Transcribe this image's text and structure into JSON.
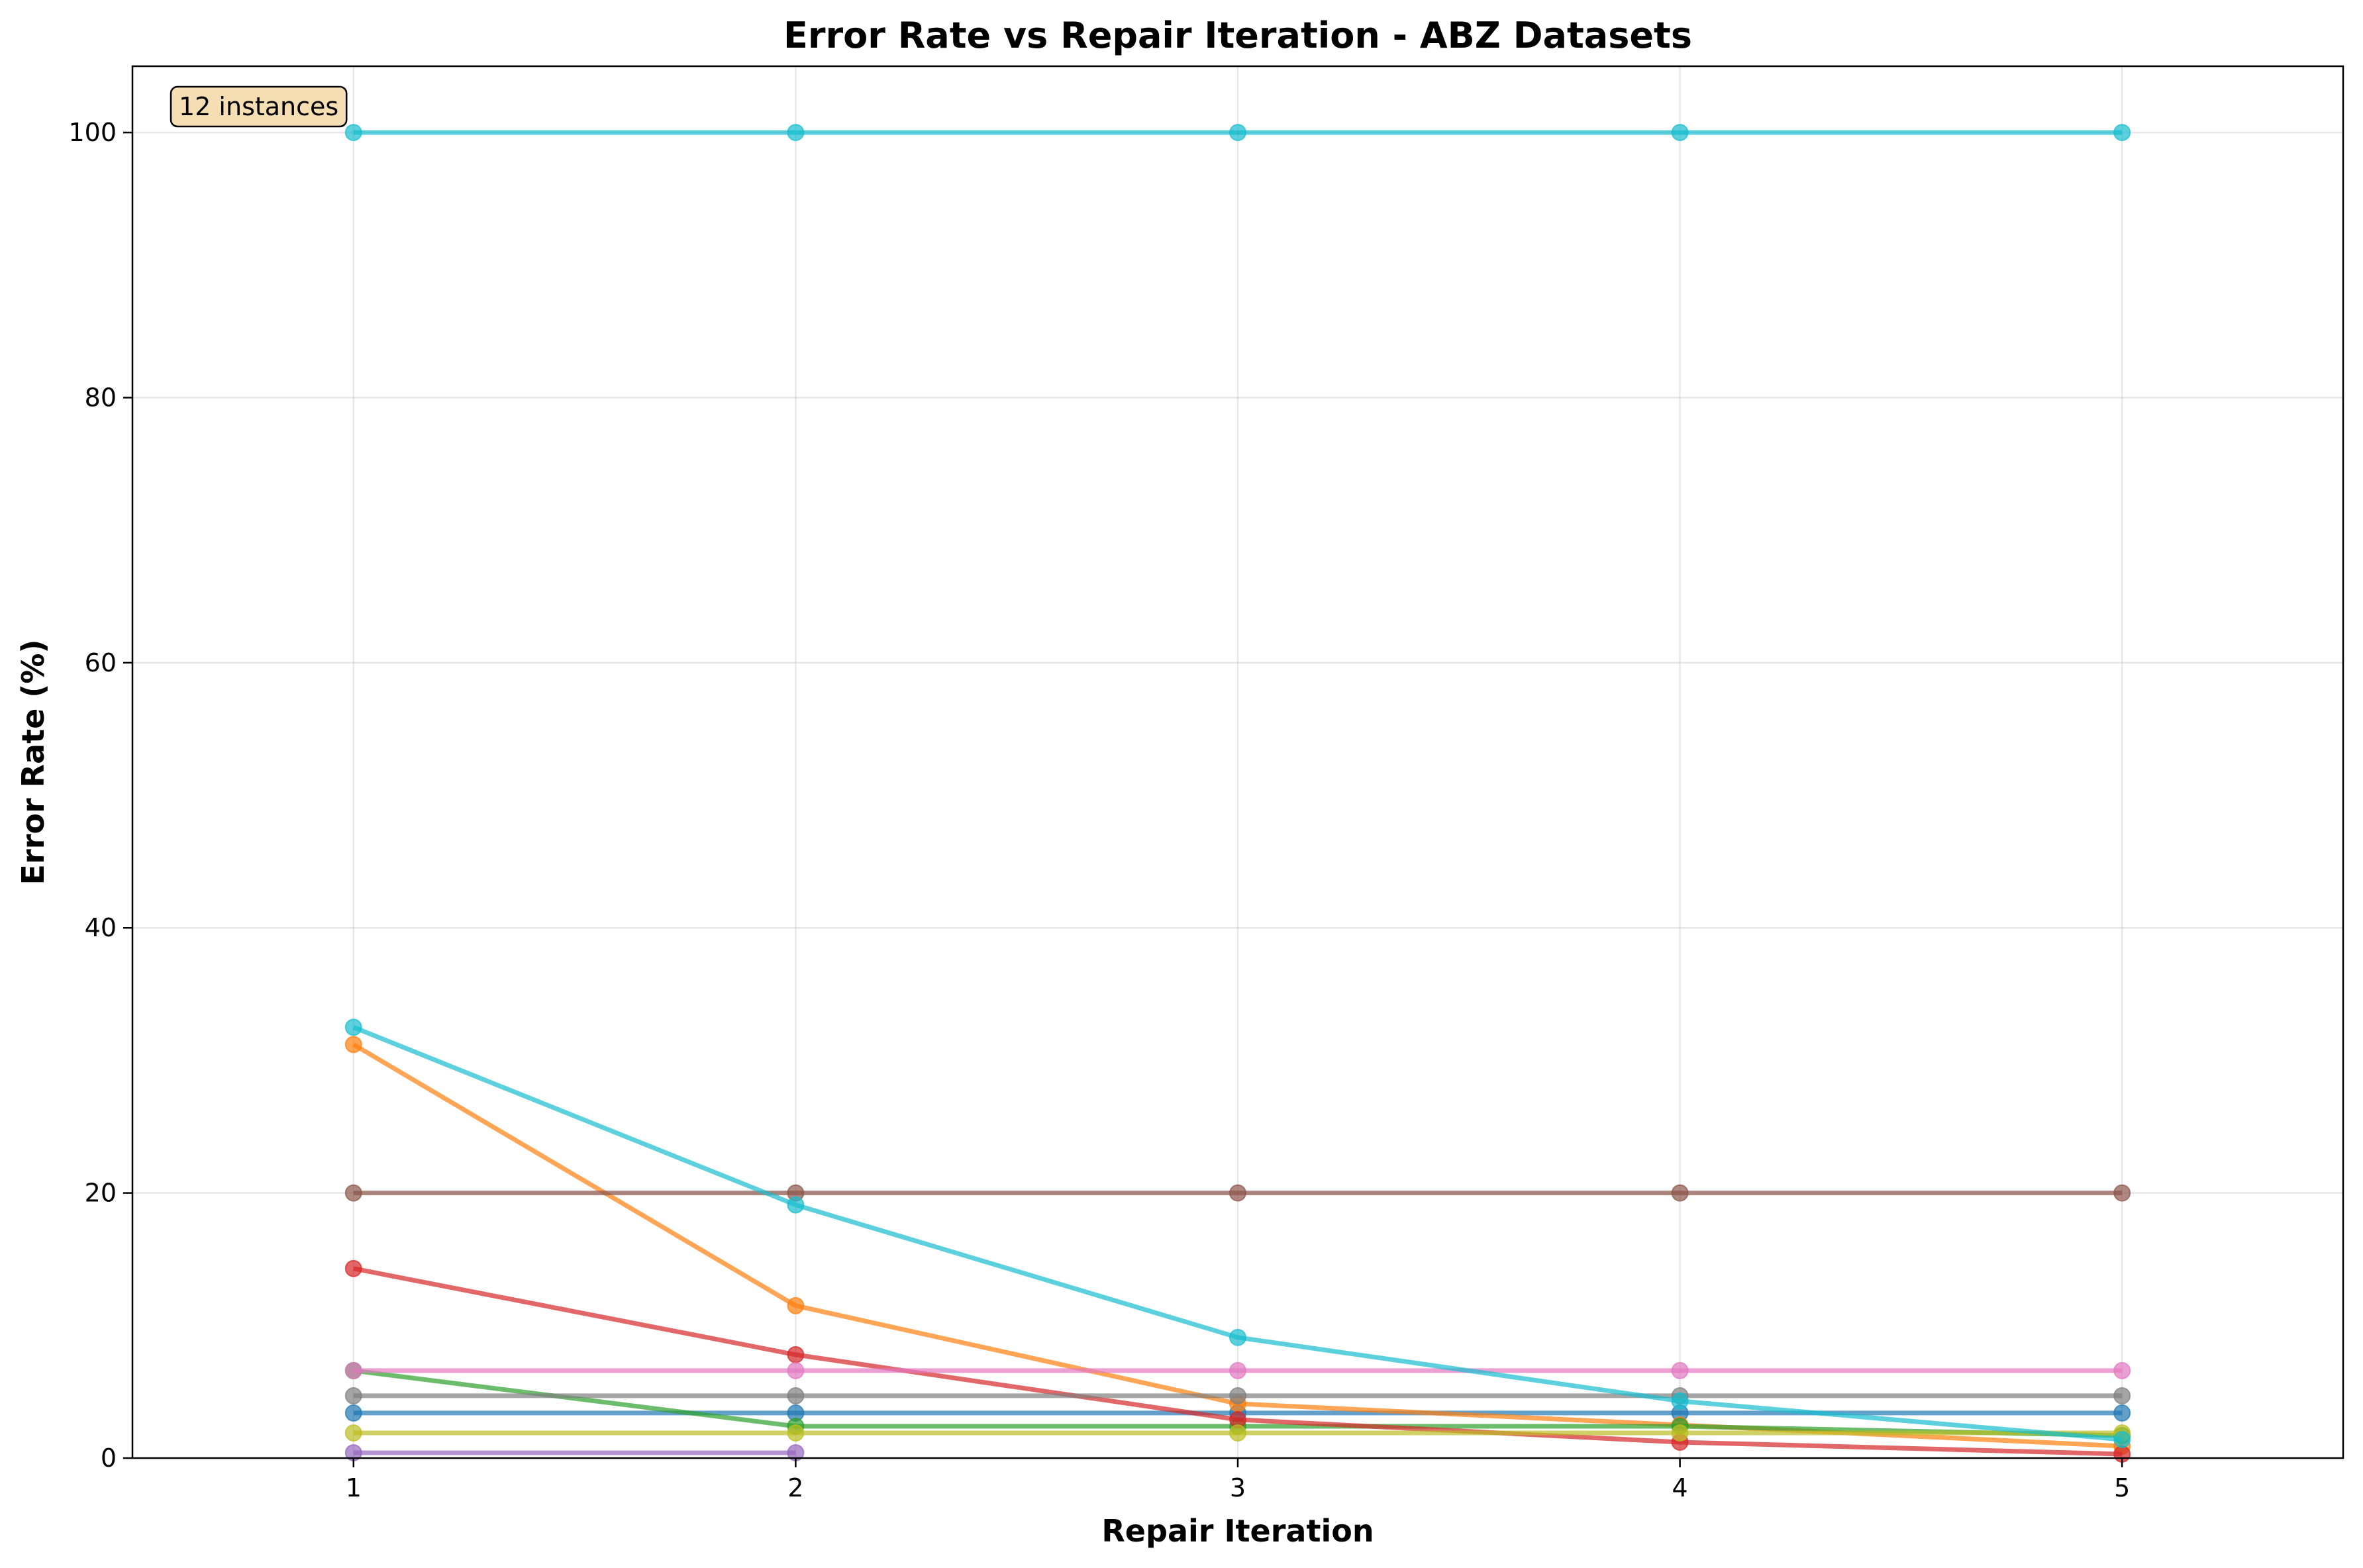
{
  "chart_data": {
    "type": "line",
    "title": "Error Rate vs Repair Iteration - ABZ Datasets",
    "xlabel": "Repair Iteration",
    "ylabel": "Error Rate (%)",
    "x": [
      1,
      2,
      3,
      4,
      5
    ],
    "xlim": [
      0.5,
      5.5
    ],
    "ylim": [
      0,
      105
    ],
    "xticks": [
      1,
      2,
      3,
      4,
      5
    ],
    "yticks": [
      0,
      20,
      40,
      60,
      80,
      100
    ],
    "grid": true,
    "legend": "none",
    "annotation": "12 instances",
    "series": [
      {
        "color": "#1f77b4",
        "x": [
          1,
          2,
          3,
          4,
          5
        ],
        "values": [
          3.4,
          3.4,
          3.4,
          3.4,
          3.4
        ]
      },
      {
        "color": "#ff7f0e",
        "x": [
          1,
          2,
          3,
          4,
          5
        ],
        "values": [
          31.2,
          11.5,
          4.1,
          2.5,
          0.9
        ]
      },
      {
        "color": "#2ca02c",
        "x": [
          1,
          2,
          3,
          4,
          5
        ],
        "values": [
          6.6,
          2.4,
          2.4,
          2.4,
          1.7
        ]
      },
      {
        "color": "#d62728",
        "x": [
          1,
          2,
          3,
          4,
          5
        ],
        "values": [
          14.3,
          7.8,
          2.9,
          1.2,
          0.3
        ]
      },
      {
        "color": "#9467bd",
        "x": [
          1,
          2
        ],
        "values": [
          0.4,
          0.4
        ]
      },
      {
        "color": "#8c564b",
        "x": [
          1,
          2,
          3,
          4,
          5
        ],
        "values": [
          20.0,
          20.0,
          20.0,
          20.0,
          20.0
        ]
      },
      {
        "color": "#e377c2",
        "x": [
          1,
          2,
          3,
          4,
          5
        ],
        "values": [
          6.6,
          6.6,
          6.6,
          6.6,
          6.6
        ]
      },
      {
        "color": "#7f7f7f",
        "x": [
          1,
          2,
          3,
          4,
          5
        ],
        "values": [
          4.7,
          4.7,
          4.7,
          4.7,
          4.7
        ]
      },
      {
        "color": "#bcbd22",
        "x": [
          1,
          2,
          3,
          4,
          5
        ],
        "values": [
          1.9,
          1.9,
          1.9,
          1.9,
          1.9
        ]
      },
      {
        "color": "#17becf",
        "x": [
          1,
          2,
          3,
          4,
          5
        ],
        "values": [
          32.5,
          19.1,
          9.1,
          4.3,
          1.4
        ]
      },
      {
        "color": "#17becf",
        "x": [
          1,
          2,
          3,
          4,
          5
        ],
        "values": [
          100,
          100,
          100,
          100,
          100
        ]
      }
    ]
  }
}
